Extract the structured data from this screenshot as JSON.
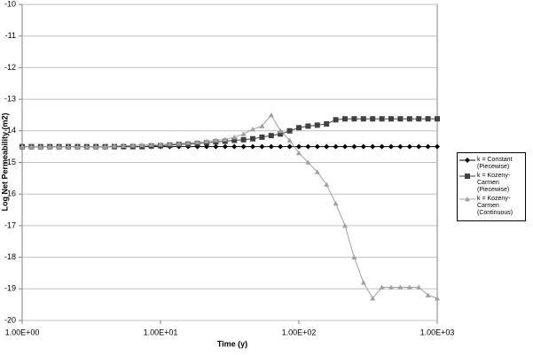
{
  "chart_data": {
    "type": "line",
    "xlabel": "Time (y)",
    "ylabel": "Log Net Permeability (m2)",
    "xscale": "log",
    "xlim": [
      1,
      1000
    ],
    "xticks": [
      {
        "value": 1,
        "label": "1.00E+00"
      },
      {
        "value": 10,
        "label": "1.00E+01"
      },
      {
        "value": 100,
        "label": "1.00E+02"
      },
      {
        "value": 1000,
        "label": "1.00E+03"
      }
    ],
    "ylim": [
      -20,
      -10
    ],
    "yticks": [
      -20,
      -19,
      -18,
      -17,
      -16,
      -15,
      -14,
      -13,
      -12,
      -11,
      -10
    ],
    "grid": true,
    "legend": "right",
    "x": [
      1,
      1.166,
      1.359,
      1.585,
      1.848,
      2.154,
      2.512,
      2.929,
      3.415,
      3.981,
      4.642,
      5.412,
      6.31,
      7.356,
      8.577,
      10,
      11.66,
      13.59,
      15.85,
      18.48,
      21.54,
      25.12,
      29.29,
      34.15,
      39.81,
      46.42,
      54.12,
      63.1,
      73.56,
      85.77,
      100,
      116.6,
      135.9,
      158.5,
      184.8,
      215.4,
      251.2,
      292.9,
      341.5,
      398.1,
      464.2,
      541.2,
      631,
      735.6,
      857.7,
      1000
    ],
    "series": [
      {
        "name": "k = Constant (Piecewise)",
        "color": "#000000",
        "marker": "diamond",
        "values": [
          -14.5,
          -14.5,
          -14.5,
          -14.5,
          -14.5,
          -14.5,
          -14.5,
          -14.5,
          -14.5,
          -14.5,
          -14.5,
          -14.5,
          -14.5,
          -14.5,
          -14.5,
          -14.5,
          -14.5,
          -14.5,
          -14.5,
          -14.5,
          -14.5,
          -14.5,
          -14.5,
          -14.5,
          -14.5,
          -14.5,
          -14.5,
          -14.5,
          -14.5,
          -14.5,
          -14.5,
          -14.5,
          -14.5,
          -14.5,
          -14.5,
          -14.5,
          -14.5,
          -14.5,
          -14.5,
          -14.5,
          -14.5,
          -14.5,
          -14.5,
          -14.5,
          -14.5,
          -14.5
        ]
      },
      {
        "name": "k = Kozeny-Carmen (Piecewise)",
        "color": "#404040",
        "marker": "square",
        "values": [
          -14.5,
          -14.5,
          -14.5,
          -14.5,
          -14.5,
          -14.5,
          -14.5,
          -14.5,
          -14.5,
          -14.5,
          -14.5,
          -14.5,
          -14.5,
          -14.5,
          -14.48,
          -14.47,
          -14.45,
          -14.43,
          -14.42,
          -14.4,
          -14.38,
          -14.35,
          -14.33,
          -14.3,
          -14.28,
          -14.25,
          -14.2,
          -14.15,
          -14.1,
          -14.0,
          -13.9,
          -13.85,
          -13.82,
          -13.78,
          -13.65,
          -13.62,
          -13.62,
          -13.62,
          -13.62,
          -13.62,
          -13.62,
          -13.62,
          -13.62,
          -13.62,
          -13.62,
          -13.62
        ]
      },
      {
        "name": "k = Kozeny-Carmen (Continuous)",
        "color": "#a0a0a0",
        "marker": "triangle",
        "values": [
          -14.5,
          -14.5,
          -14.5,
          -14.5,
          -14.5,
          -14.5,
          -14.5,
          -14.5,
          -14.5,
          -14.5,
          -14.48,
          -14.47,
          -14.46,
          -14.45,
          -14.44,
          -14.43,
          -14.41,
          -14.4,
          -14.38,
          -14.36,
          -14.33,
          -14.3,
          -14.27,
          -14.2,
          -14.1,
          -13.95,
          -13.85,
          -13.5,
          -14.0,
          -14.3,
          -14.7,
          -15.0,
          -15.3,
          -15.7,
          -16.3,
          -17.0,
          -18.0,
          -18.8,
          -19.3,
          -18.95,
          -18.95,
          -18.95,
          -18.95,
          -18.95,
          -19.2,
          -19.3
        ]
      }
    ]
  }
}
